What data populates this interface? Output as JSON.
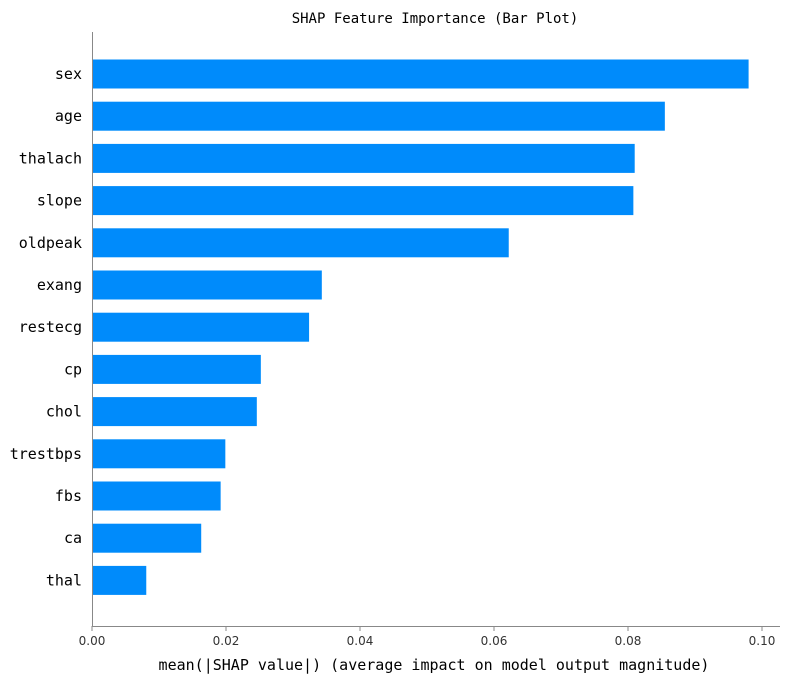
{
  "chart_data": {
    "type": "bar",
    "orientation": "horizontal",
    "title": "SHAP Feature Importance (Bar Plot)",
    "xlabel": "mean(|SHAP value|) (average impact on model output magnitude)",
    "ylabel": "",
    "categories": [
      "sex",
      "age",
      "thalach",
      "slope",
      "oldpeak",
      "exang",
      "restecg",
      "cp",
      "chol",
      "trestbps",
      "fbs",
      "ca",
      "thal"
    ],
    "values": [
      0.098,
      0.0855,
      0.081,
      0.0808,
      0.0622,
      0.0343,
      0.0324,
      0.0252,
      0.0246,
      0.0199,
      0.0192,
      0.0163,
      0.0081
    ],
    "xlim": [
      0,
      0.1
    ],
    "xticks": [
      0.0,
      0.02,
      0.04,
      0.06,
      0.08,
      0.1
    ],
    "xtick_labels": [
      "0.00",
      "0.02",
      "0.04",
      "0.06",
      "0.08",
      "0.10"
    ],
    "bar_color": "#008bfb",
    "grid": false,
    "legend": "none"
  }
}
